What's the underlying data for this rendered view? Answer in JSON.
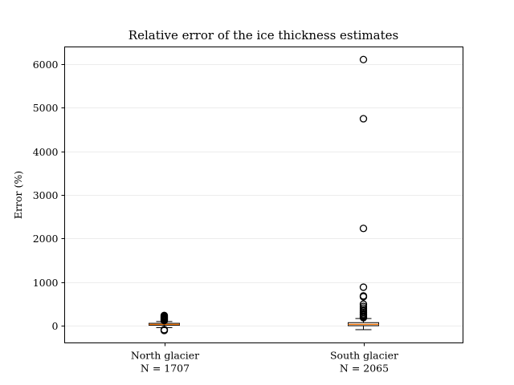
{
  "chart_data": {
    "type": "box",
    "title": "Relative error of the ice thickness estimates",
    "ylabel": "Error (%)",
    "ylim": [
      -400,
      6400
    ],
    "yticks": [
      0,
      1000,
      2000,
      3000,
      4000,
      5000,
      6000
    ],
    "grid": "y",
    "categories": [
      {
        "label": "North glacier",
        "sublabel": "N = 1707"
      },
      {
        "label": "South glacier",
        "sublabel": "N = 2065"
      }
    ],
    "boxes": [
      {
        "whisker_low": -50,
        "q1": 5,
        "median": 25,
        "q3": 50,
        "whisker_high": 90,
        "outliers": [
          -115,
          -105,
          -95,
          110,
          125,
          140,
          155,
          170,
          185,
          200,
          215,
          230
        ]
      },
      {
        "whisker_low": -95,
        "q1": -5,
        "median": 25,
        "q3": 65,
        "whisker_high": 160,
        "outliers": [
          180,
          200,
          220,
          245,
          270,
          300,
          330,
          360,
          400,
          440,
          490,
          660,
          680,
          880,
          2230,
          4750,
          6110
        ]
      }
    ],
    "colors": {
      "median": "#ff7f0e",
      "box": "#000000",
      "grid": "#e6e6e6"
    }
  }
}
